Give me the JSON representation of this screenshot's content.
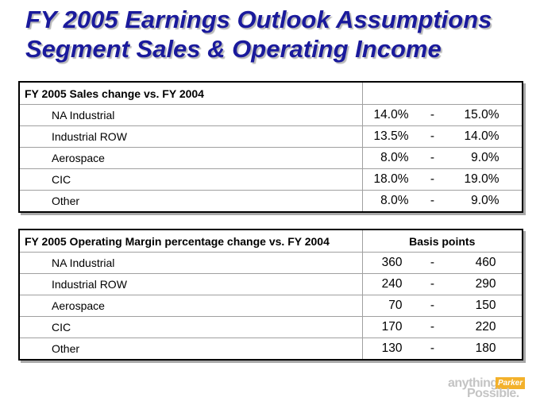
{
  "title": {
    "line1": "FY 2005  Earnings Outlook Assumptions",
    "line2": "Segment Sales & Operating Income"
  },
  "sales_table": {
    "header": "FY 2005 Sales change vs. FY 2004",
    "header_right": "",
    "rows": [
      {
        "label": "NA Industrial",
        "low": "14.0%",
        "sep": "-",
        "high": "15.0%"
      },
      {
        "label": "Industrial ROW",
        "low": "13.5%",
        "sep": "-",
        "high": "14.0%"
      },
      {
        "label": "Aerospace",
        "low": "8.0%",
        "sep": "-",
        "high": "9.0%"
      },
      {
        "label": "CIC",
        "low": "18.0%",
        "sep": "-",
        "high": "19.0%"
      },
      {
        "label": "Other",
        "low": "8.0%",
        "sep": "-",
        "high": "9.0%"
      }
    ]
  },
  "margin_table": {
    "header": "FY 2005 Operating Margin percentage change vs. FY 2004",
    "header_right": "Basis points",
    "rows": [
      {
        "label": "NA Industrial",
        "low": "360",
        "sep": "-",
        "high": "460"
      },
      {
        "label": "Industrial ROW",
        "low": "240",
        "sep": "-",
        "high": "290"
      },
      {
        "label": "Aerospace",
        "low": "70",
        "sep": "-",
        "high": "150"
      },
      {
        "label": "CIC",
        "low": "170",
        "sep": "-",
        "high": "220"
      },
      {
        "label": "Other",
        "low": "130",
        "sep": "-",
        "high": "180"
      }
    ]
  },
  "logo": {
    "word1": "anything",
    "brand": "Parker",
    "word2": "Possible."
  }
}
